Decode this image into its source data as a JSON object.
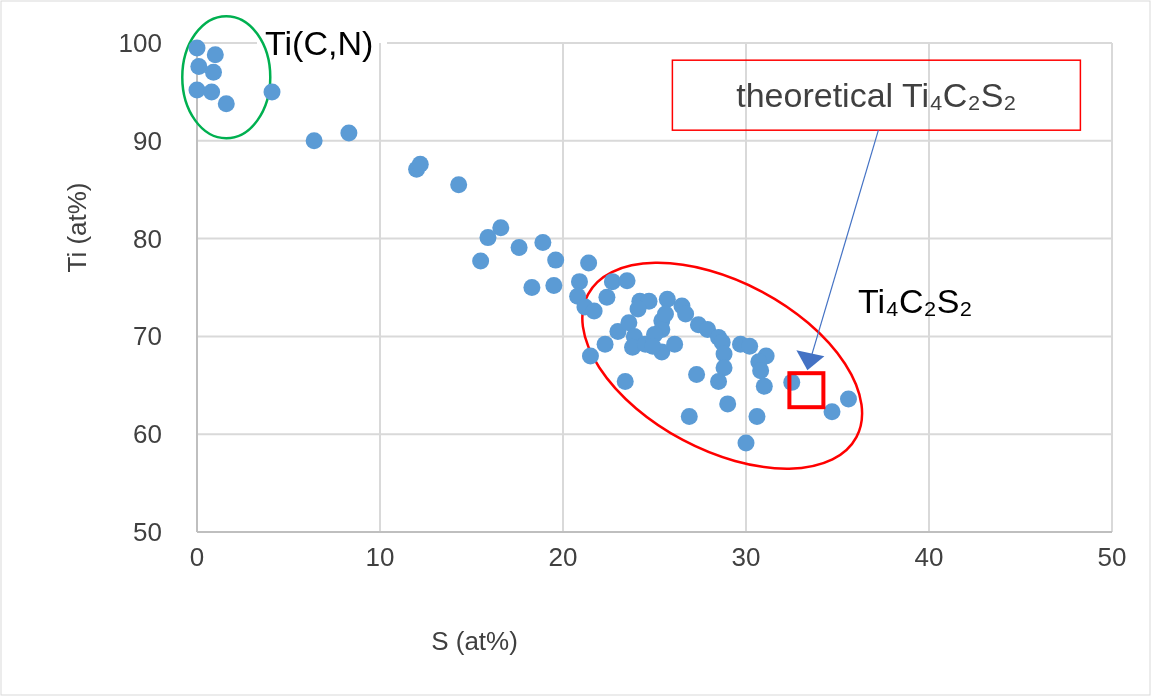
{
  "chart_data": {
    "type": "scatter",
    "xlabel": "S (at%)",
    "ylabel": "Ti (at%)",
    "xlim": [
      0,
      50
    ],
    "ylim": [
      50,
      100
    ],
    "xticks": [
      0,
      10,
      20,
      30,
      40,
      50
    ],
    "yticks": [
      50,
      60,
      70,
      80,
      90,
      100
    ],
    "grid": true,
    "marker": "circle",
    "series": [
      {
        "color": "#5b9bd5",
        "x": [
          0,
          1.0,
          0.1,
          0.9,
          0,
          0.8,
          1.6,
          4.1,
          6.4,
          8.3,
          12.0,
          12.2,
          14.3,
          16.6,
          15.9,
          15.5,
          17.6,
          18.9,
          19.6,
          18.3,
          19.5,
          21.4,
          22.7,
          20.9,
          20.8,
          21.2,
          21.7,
          22.4,
          23.5,
          24.2,
          24.7,
          25.7,
          26.5,
          26.7,
          24.1,
          25.4,
          25.4,
          27.4,
          27.9,
          28.5,
          28.7,
          29.7,
          30.2,
          28.8,
          28.8,
          28.5,
          31.1,
          30.7,
          30.8,
          31.0,
          32.5,
          35.6,
          34.7,
          30.6,
          29.0,
          26.9,
          30.0,
          27.3,
          23.4,
          21.5,
          22.3,
          23.0,
          23.6,
          23.9,
          23.8,
          24.5,
          25.0,
          25.4,
          26.1,
          24.9,
          25.6
        ],
        "values": [
          99.5,
          98.8,
          97.6,
          97.0,
          95.2,
          95.0,
          93.8,
          95.0,
          90.0,
          90.8,
          87.1,
          87.6,
          85.5,
          81.1,
          80.1,
          77.7,
          79.1,
          79.6,
          77.8,
          75.0,
          75.2,
          77.5,
          75.6,
          75.6,
          74.1,
          73.0,
          72.6,
          74.0,
          75.7,
          73.6,
          73.6,
          73.8,
          73.1,
          72.3,
          72.8,
          71.6,
          70.7,
          71.2,
          70.7,
          69.9,
          69.4,
          69.2,
          69.0,
          68.2,
          66.8,
          65.4,
          68.0,
          67.4,
          66.5,
          64.9,
          65.3,
          63.6,
          62.3,
          61.8,
          63.1,
          61.8,
          59.1,
          66.1,
          65.4,
          68.0,
          69.2,
          70.5,
          71.4,
          70.0,
          68.9,
          69.2,
          70.2,
          68.4,
          69.2,
          69.0,
          72.3
        ]
      },
      {
        "color": "#ff0000",
        "marker": "square",
        "x": [
          33.3
        ],
        "values": [
          64.5
        ]
      }
    ],
    "annotations": [
      "Ti(C,N)",
      "Ti₄C₂S₂",
      "theoretical Ti₄C₂S₂"
    ]
  }
}
